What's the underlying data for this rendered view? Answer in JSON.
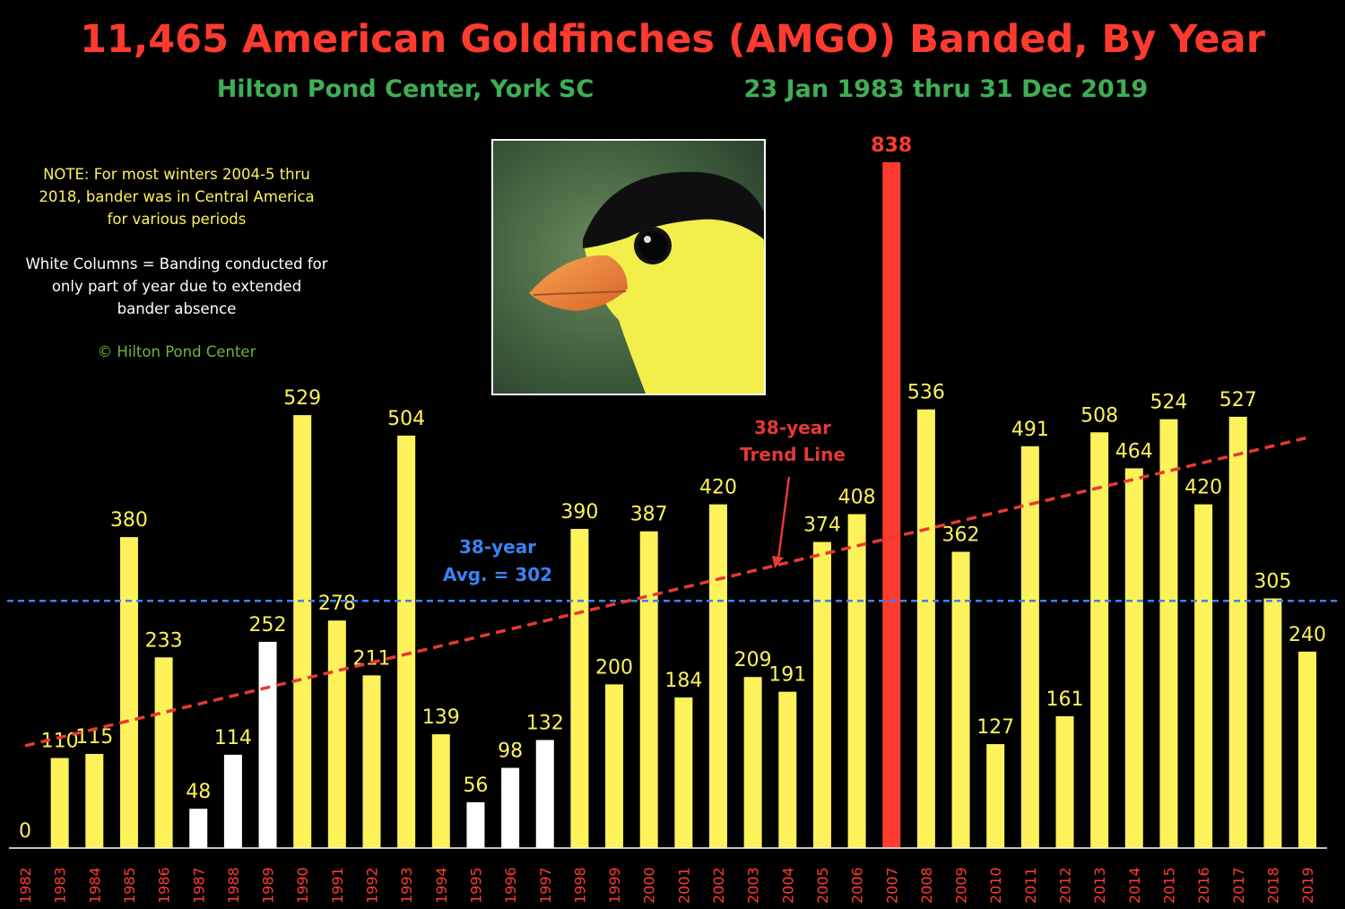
{
  "title": "11,465 American Goldfinches (AMGO) Banded, By Year",
  "subtitle_left": "Hilton Pond Center, York SC",
  "subtitle_right": "23 Jan 1983 thru 31 Dec 2019",
  "note": {
    "line1": "NOTE: For most winters 2004-5 thru",
    "line2": "2018, bander was in Central America",
    "line3": "for various periods",
    "white_line1": "White Columns = Banding conducted for",
    "white_line2": "only part of year due to extended",
    "white_line3": "bander absence",
    "copyright": "© Hilton Pond Center"
  },
  "photo_subject": "american-goldfinch-head",
  "avg_annotation": {
    "line1": "38-year",
    "line2": "Avg. = 302"
  },
  "trend_annotation": {
    "line1": "38-year",
    "line2": "Trend Line"
  },
  "colors": {
    "title": "#ff3b30",
    "subtitle": "#3fae55",
    "yellow_bar": "#fdf25a",
    "white_bar": "#ffffff",
    "max_bar": "#ff3b30",
    "avg_line": "#3b82f6",
    "trend_line": "#e53935",
    "year_label": "#ff3b30",
    "value_label": "#fdf25a",
    "note": "#fdf25a",
    "copyright": "#6fb43f"
  },
  "chart_data": {
    "type": "bar",
    "categories": [
      "1982",
      "1983",
      "1984",
      "1985",
      "1986",
      "1987",
      "1988",
      "1989",
      "1990",
      "1991",
      "1992",
      "1993",
      "1994",
      "1995",
      "1996",
      "1997",
      "1998",
      "1999",
      "2000",
      "2001",
      "2002",
      "2003",
      "2004",
      "2005",
      "2006",
      "2007",
      "2008",
      "2009",
      "2010",
      "2011",
      "2012",
      "2013",
      "2014",
      "2015",
      "2016",
      "2017",
      "2018",
      "2019"
    ],
    "values": [
      0,
      110,
      115,
      380,
      233,
      48,
      114,
      252,
      529,
      278,
      211,
      504,
      139,
      56,
      98,
      132,
      390,
      200,
      387,
      184,
      420,
      209,
      191,
      374,
      408,
      838,
      536,
      362,
      127,
      491,
      161,
      508,
      464,
      524,
      420,
      527,
      305,
      240
    ],
    "bar_kind": [
      "yellow",
      "yellow",
      "yellow",
      "yellow",
      "yellow",
      "white",
      "white",
      "white",
      "yellow",
      "yellow",
      "yellow",
      "yellow",
      "yellow",
      "white",
      "white",
      "white",
      "yellow",
      "yellow",
      "yellow",
      "yellow",
      "yellow",
      "yellow",
      "yellow",
      "yellow",
      "yellow",
      "red",
      "yellow",
      "yellow",
      "yellow",
      "yellow",
      "yellow",
      "yellow",
      "yellow",
      "yellow",
      "yellow",
      "yellow",
      "yellow",
      "yellow"
    ],
    "average": 302,
    "trend_start": 125,
    "trend_end": 502,
    "ylim": [
      0,
      900
    ],
    "xlabel": "",
    "ylabel": "",
    "grid": false,
    "legend": "none"
  }
}
